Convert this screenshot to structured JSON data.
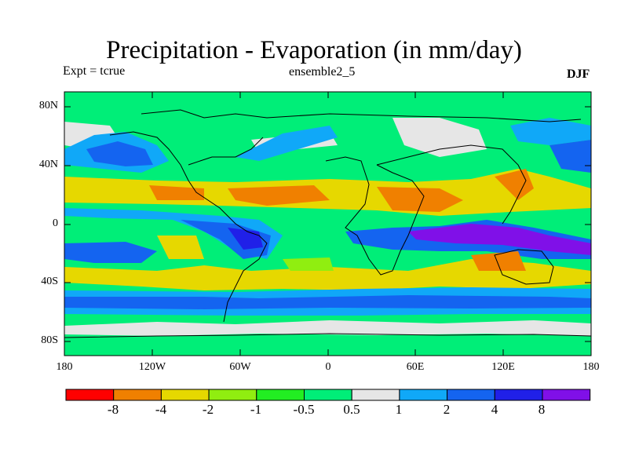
{
  "figure": {
    "title": "Precipitation - Evaporation (in mm/day)",
    "experiment": "Expt = tcrue",
    "run": "ensemble2_5",
    "season": "DJF"
  },
  "axes": {
    "lat_labels": [
      "80N",
      "40N",
      "0",
      "40S",
      "80S"
    ],
    "lon_labels": [
      "180",
      "120W",
      "60W",
      "0",
      "60E",
      "120E",
      "180"
    ]
  },
  "colorbar": {
    "labels": [
      "-8",
      "-4",
      "-2",
      "-1",
      "-0.5",
      "0.5",
      "1",
      "2",
      "4",
      "8"
    ],
    "colors": [
      "#ff0000",
      "#f08000",
      "#e6d800",
      "#90ee10",
      "#22ee22",
      "#00ee78",
      "#e6e6e6",
      "#10a8f8",
      "#1464f0",
      "#2020e8",
      "#8010e8"
    ]
  },
  "colors": {
    "background_field": "#00ee78",
    "coastline": "#000000"
  }
}
